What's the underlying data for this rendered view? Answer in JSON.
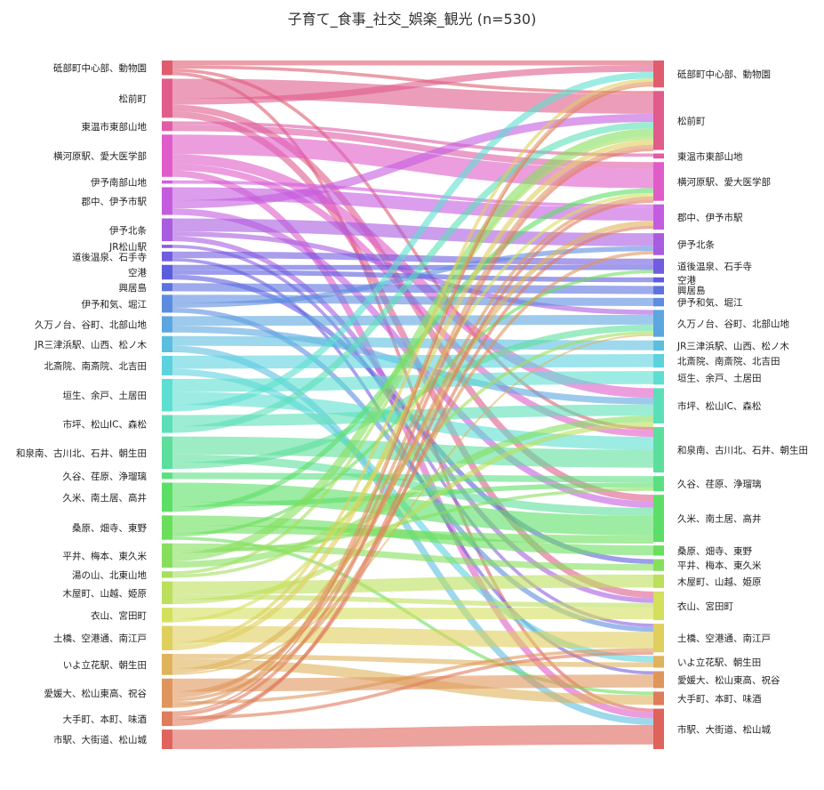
{
  "chart_data": {
    "type": "sankey",
    "title": "子育て_食事_社交_娯楽_観光 (n=530)",
    "source_nodes": [
      {
        "label": "砥部町中心部、動物園",
        "value": 9,
        "color": "#e05c6e"
      },
      {
        "label": "松前町",
        "value": 24,
        "color": "#e05c8a"
      },
      {
        "label": "東温市東部山地",
        "value": 6,
        "color": "#e05ca6"
      },
      {
        "label": "横河原駅、愛大医学部",
        "value": 26,
        "color": "#e05cc8"
      },
      {
        "label": "伊予南部山地",
        "value": 2,
        "color": "#d65cdf"
      },
      {
        "label": "郡中、伊予市駅",
        "value": 17,
        "color": "#c45cdf"
      },
      {
        "label": "伊予北条",
        "value": 14,
        "color": "#a85cdf"
      },
      {
        "label": "JR松山駅",
        "value": 2,
        "color": "#8c5cdf"
      },
      {
        "label": "道後温泉、石手寺",
        "value": 6,
        "color": "#725cdf"
      },
      {
        "label": "空港",
        "value": 9,
        "color": "#5c5cdf"
      },
      {
        "label": "興居島",
        "value": 5,
        "color": "#5c72df"
      },
      {
        "label": "伊予和気、堀江",
        "value": 11,
        "color": "#5c8cdf"
      },
      {
        "label": "久万ノ台、谷町、北部山地",
        "value": 10,
        "color": "#5ca6df"
      },
      {
        "label": "JR三津浜駅、山西、松ノ木",
        "value": 10,
        "color": "#5cbedf"
      },
      {
        "label": "北斎院、南斎院、北吉田",
        "value": 12,
        "color": "#5cd2df"
      },
      {
        "label": "垣生、余戸、土居田",
        "value": 20,
        "color": "#5cdfd0"
      },
      {
        "label": "市坪、松山IC、森松",
        "value": 11,
        "color": "#5cdfb8"
      },
      {
        "label": "和泉南、古川北、石井、朝生田",
        "value": 20,
        "color": "#5cdf9c"
      },
      {
        "label": "久谷、荏原、浄瑠璃",
        "value": 4,
        "color": "#5cdf80"
      },
      {
        "label": "久米、南土居、高井",
        "value": 18,
        "color": "#5cdf66"
      },
      {
        "label": "桑原、畑寺、東野",
        "value": 15,
        "color": "#6adf5c"
      },
      {
        "label": "平井、梅本、東久米",
        "value": 15,
        "color": "#86df5c"
      },
      {
        "label": "湯の山、北東山地",
        "value": 4,
        "color": "#a2df5c"
      },
      {
        "label": "木屋町、山越、姫原",
        "value": 14,
        "color": "#bcdf5c"
      },
      {
        "label": "衣山、宮田町",
        "value": 9,
        "color": "#d4df5c"
      },
      {
        "label": "土橋、空港通、南江戸",
        "value": 15,
        "color": "#dfcf5c"
      },
      {
        "label": "いよ立花駅、朝生田",
        "value": 13,
        "color": "#dfb25c"
      },
      {
        "label": "愛媛大、松山東高、祝谷",
        "value": 18,
        "color": "#df965c"
      },
      {
        "label": "大手町、本町、味酒",
        "value": 9,
        "color": "#df7c5c"
      },
      {
        "label": "市駅、大街道、松山城",
        "value": 12,
        "color": "#df645c"
      }
    ],
    "target_nodes": [
      {
        "label": "砥部町中心部、動物園",
        "value": 16,
        "color": "#e05c6e"
      },
      {
        "label": "松前町",
        "value": 35,
        "color": "#e05c8a"
      },
      {
        "label": "東温市東部山地",
        "value": 3,
        "color": "#e05ca6"
      },
      {
        "label": "横河原駅、愛大医学部",
        "value": 23,
        "color": "#e05cc8"
      },
      {
        "label": "郡中、伊予市駅",
        "value": 15,
        "color": "#c45cdf"
      },
      {
        "label": "伊予北条",
        "value": 13,
        "color": "#a85cdf"
      },
      {
        "label": "道後温泉、石手寺",
        "value": 9,
        "color": "#725cdf"
      },
      {
        "label": "空港",
        "value": 3,
        "color": "#5c5cdf"
      },
      {
        "label": "興居島",
        "value": 5,
        "color": "#5c72df"
      },
      {
        "label": "伊予和気、堀江",
        "value": 5,
        "color": "#5c8cdf"
      },
      {
        "label": "久万ノ台、谷町、北部山地",
        "value": 16,
        "color": "#5ca6df"
      },
      {
        "label": "JR三津浜駅、山西、松ノ木",
        "value": 6,
        "color": "#5cbedf"
      },
      {
        "label": "北斎院、南斎院、北吉田",
        "value": 8,
        "color": "#5cd2df"
      },
      {
        "label": "垣生、余戸、土居田",
        "value": 8,
        "color": "#5cdfd0"
      },
      {
        "label": "市坪、松山IC、森松",
        "value": 21,
        "color": "#5cdfb8"
      },
      {
        "label": "和泉南、古川北、石井、朝生田",
        "value": 27,
        "color": "#5cdf9c"
      },
      {
        "label": "久谷、荏原、浄瑠璃",
        "value": 9,
        "color": "#5cdf80"
      },
      {
        "label": "久米、南土居、高井",
        "value": 28,
        "color": "#5cdf66"
      },
      {
        "label": "桑原、畑寺、東野",
        "value": 6,
        "color": "#6adf5c"
      },
      {
        "label": "平井、梅本、東久米",
        "value": 7,
        "color": "#86df5c"
      },
      {
        "label": "木屋町、山越、姫原",
        "value": 8,
        "color": "#bcdf5c"
      },
      {
        "label": "衣山、宮田町",
        "value": 17,
        "color": "#d4df5c"
      },
      {
        "label": "土橋、空港通、南江戸",
        "value": 17,
        "color": "#dfcf5c"
      },
      {
        "label": "いよ立花駅、朝生田",
        "value": 7,
        "color": "#dfb25c"
      },
      {
        "label": "愛媛大、松山東高、祝谷",
        "value": 10,
        "color": "#df965c"
      },
      {
        "label": "大手町、本町、味酒",
        "value": 8,
        "color": "#df7c5c"
      },
      {
        "label": "市駅、大街道、松山城",
        "value": 24,
        "color": "#df645c"
      }
    ],
    "links": [
      {
        "source": 0,
        "target": 0,
        "value": 3
      },
      {
        "source": 0,
        "target": 1,
        "value": 2
      },
      {
        "source": 0,
        "target": 15,
        "value": 2
      },
      {
        "source": 0,
        "target": 26,
        "value": 2
      },
      {
        "source": 1,
        "target": 1,
        "value": 12
      },
      {
        "source": 1,
        "target": 0,
        "value": 4
      },
      {
        "source": 1,
        "target": 17,
        "value": 4
      },
      {
        "source": 1,
        "target": 21,
        "value": 4
      },
      {
        "source": 2,
        "target": 2,
        "value": 2
      },
      {
        "source": 2,
        "target": 3,
        "value": 4
      },
      {
        "source": 3,
        "target": 3,
        "value": 12
      },
      {
        "source": 3,
        "target": 14,
        "value": 6
      },
      {
        "source": 3,
        "target": 15,
        "value": 4
      },
      {
        "source": 3,
        "target": 26,
        "value": 4
      },
      {
        "source": 4,
        "target": 4,
        "value": 2
      },
      {
        "source": 5,
        "target": 4,
        "value": 8
      },
      {
        "source": 5,
        "target": 1,
        "value": 5
      },
      {
        "source": 5,
        "target": 17,
        "value": 4
      },
      {
        "source": 6,
        "target": 5,
        "value": 8
      },
      {
        "source": 6,
        "target": 10,
        "value": 3
      },
      {
        "source": 6,
        "target": 21,
        "value": 3
      },
      {
        "source": 7,
        "target": 22,
        "value": 2
      },
      {
        "source": 8,
        "target": 6,
        "value": 4
      },
      {
        "source": 8,
        "target": 24,
        "value": 2
      },
      {
        "source": 9,
        "target": 6,
        "value": 3
      },
      {
        "source": 9,
        "target": 7,
        "value": 3
      },
      {
        "source": 9,
        "target": 19,
        "value": 3
      },
      {
        "source": 10,
        "target": 8,
        "value": 5
      },
      {
        "source": 11,
        "target": 9,
        "value": 5
      },
      {
        "source": 11,
        "target": 5,
        "value": 3
      },
      {
        "source": 11,
        "target": 22,
        "value": 3
      },
      {
        "source": 12,
        "target": 10,
        "value": 6
      },
      {
        "source": 12,
        "target": 14,
        "value": 4
      },
      {
        "source": 13,
        "target": 11,
        "value": 6
      },
      {
        "source": 13,
        "target": 26,
        "value": 4
      },
      {
        "source": 14,
        "target": 12,
        "value": 8
      },
      {
        "source": 14,
        "target": 23,
        "value": 4
      },
      {
        "source": 15,
        "target": 13,
        "value": 8
      },
      {
        "source": 15,
        "target": 15,
        "value": 8
      },
      {
        "source": 15,
        "target": 0,
        "value": 4
      },
      {
        "source": 16,
        "target": 14,
        "value": 7
      },
      {
        "source": 16,
        "target": 1,
        "value": 4
      },
      {
        "source": 17,
        "target": 15,
        "value": 11
      },
      {
        "source": 17,
        "target": 17,
        "value": 5
      },
      {
        "source": 17,
        "target": 10,
        "value": 4
      },
      {
        "source": 18,
        "target": 16,
        "value": 4
      },
      {
        "source": 19,
        "target": 17,
        "value": 12
      },
      {
        "source": 19,
        "target": 16,
        "value": 3
      },
      {
        "source": 19,
        "target": 3,
        "value": 3
      },
      {
        "source": 20,
        "target": 18,
        "value": 6
      },
      {
        "source": 20,
        "target": 17,
        "value": 5
      },
      {
        "source": 20,
        "target": 6,
        "value": 2
      },
      {
        "source": 20,
        "target": 25,
        "value": 2
      },
      {
        "source": 21,
        "target": 19,
        "value": 4
      },
      {
        "source": 21,
        "target": 16,
        "value": 2
      },
      {
        "source": 21,
        "target": 1,
        "value": 5
      },
      {
        "source": 21,
        "target": 14,
        "value": 4
      },
      {
        "source": 22,
        "target": 1,
        "value": 2
      },
      {
        "source": 22,
        "target": 10,
        "value": 2
      },
      {
        "source": 23,
        "target": 20,
        "value": 8
      },
      {
        "source": 23,
        "target": 21,
        "value": 3
      },
      {
        "source": 23,
        "target": 14,
        "value": 3
      },
      {
        "source": 24,
        "target": 21,
        "value": 7
      },
      {
        "source": 24,
        "target": 3,
        "value": 2
      },
      {
        "source": 25,
        "target": 22,
        "value": 10
      },
      {
        "source": 25,
        "target": 0,
        "value": 2
      },
      {
        "source": 25,
        "target": 1,
        "value": 3
      },
      {
        "source": 26,
        "target": 23,
        "value": 3
      },
      {
        "source": 26,
        "target": 25,
        "value": 6
      },
      {
        "source": 26,
        "target": 4,
        "value": 3
      },
      {
        "source": 26,
        "target": 10,
        "value": 1
      },
      {
        "source": 27,
        "target": 24,
        "value": 8
      },
      {
        "source": 27,
        "target": 3,
        "value": 2
      },
      {
        "source": 27,
        "target": 1,
        "value": 2
      },
      {
        "source": 27,
        "target": 5,
        "value": 2
      },
      {
        "source": 27,
        "target": 22,
        "value": 2
      },
      {
        "source": 27,
        "target": 13,
        "value": 0
      },
      {
        "source": 27,
        "target": 0,
        "value": 2
      },
      {
        "source": 28,
        "target": 0,
        "value": 1
      },
      {
        "source": 28,
        "target": 1,
        "value": 2
      },
      {
        "source": 28,
        "target": 22,
        "value": 2
      },
      {
        "source": 28,
        "target": 4,
        "value": 2
      },
      {
        "source": 28,
        "target": 3,
        "value": 2
      },
      {
        "source": 29,
        "target": 26,
        "value": 12
      }
    ]
  }
}
